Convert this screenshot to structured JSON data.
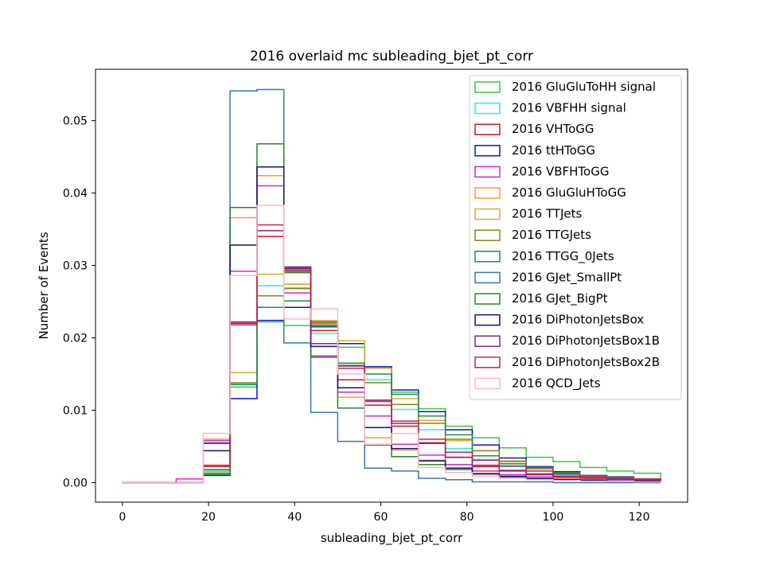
{
  "chart_data": {
    "type": "step-histogram",
    "title": "2016 overlaid mc subleading_bjet_pt_corr",
    "xlabel": "subleading_bjet_pt_corr",
    "ylabel": "Number of Events",
    "xlim": [
      -6.25,
      131.25
    ],
    "ylim": [
      -0.0027,
      0.0571
    ],
    "xticks": [
      0,
      20,
      40,
      60,
      80,
      100,
      120
    ],
    "xtick_labels": [
      "0",
      "20",
      "40",
      "60",
      "80",
      "100",
      "120"
    ],
    "yticks": [
      0.0,
      0.01,
      0.02,
      0.03,
      0.04,
      0.05
    ],
    "ytick_labels": [
      "0.00",
      "0.01",
      "0.02",
      "0.03",
      "0.04",
      "0.05"
    ],
    "grid": false,
    "legend_position": "top-right",
    "bin_edges": [
      0,
      6.25,
      12.5,
      18.75,
      25,
      31.25,
      37.5,
      43.75,
      50,
      56.25,
      62.5,
      68.75,
      75,
      81.25,
      87.5,
      93.75,
      100,
      106.25,
      112.5,
      118.75,
      125
    ],
    "series": [
      {
        "name": "2016 GluGluToHH signal",
        "color": "#33cc33",
        "values": [
          0,
          0,
          0,
          0.0012,
          0.0132,
          0.0222,
          0.0217,
          0.022,
          0.0187,
          0.016,
          0.0125,
          0.0102,
          0.0078,
          0.0062,
          0.0048,
          0.0035,
          0.0029,
          0.0021,
          0.0016,
          0.0013
        ]
      },
      {
        "name": "2016 VBFHH signal",
        "color": "#22eeee",
        "values": [
          0,
          0,
          0,
          0.0017,
          0.0135,
          0.0272,
          0.0269,
          0.0206,
          0.0165,
          0.0142,
          0.0101,
          0.0073,
          0.0047,
          0.0032,
          0.0022,
          0.0016,
          0.0011,
          0.0008,
          0.0006,
          0.0005
        ]
      },
      {
        "name": "2016 VHToGG",
        "color": "#dd1111",
        "values": [
          0,
          0,
          0,
          0.0024,
          0.022,
          0.034,
          0.0292,
          0.021,
          0.0142,
          0.0107,
          0.0078,
          0.0055,
          0.0035,
          0.0022,
          0.0016,
          0.0011,
          0.0008,
          0.0006,
          0.0004,
          0.0003
        ]
      },
      {
        "name": "2016 ttHToGG",
        "color": "#1111dd",
        "values": [
          0,
          0,
          0,
          0.001,
          0.0116,
          0.0224,
          0.0242,
          0.0216,
          0.0192,
          0.016,
          0.0128,
          0.0098,
          0.0073,
          0.0052,
          0.0034,
          0.0022,
          0.0015,
          0.001,
          0.0008,
          0.0005
        ]
      },
      {
        "name": "2016 VBFHToGG",
        "color": "#dd22dd",
        "values": [
          0,
          0,
          0.0005,
          0.0058,
          0.0292,
          0.041,
          0.0262,
          0.0175,
          0.0125,
          0.0092,
          0.0053,
          0.0038,
          0.0025,
          0.0016,
          0.0011,
          0.0008,
          0.0006,
          0.0004,
          0.0003,
          0.0002
        ]
      },
      {
        "name": "2016 GluGluHToGG",
        "color": "#ff9922",
        "values": [
          0,
          0,
          0,
          0.006,
          0.0366,
          0.0424,
          0.0274,
          0.0192,
          0.0118,
          0.0062,
          0.0045,
          0.0031,
          0.002,
          0.0013,
          0.0009,
          0.0006,
          0.0005,
          0.0003,
          0.0002,
          0.0002
        ]
      },
      {
        "name": "2016 TTJets",
        "color": "#ddaa33",
        "values": [
          0,
          0,
          0,
          0.0015,
          0.0152,
          0.0288,
          0.0274,
          0.0224,
          0.0196,
          0.0158,
          0.0116,
          0.0086,
          0.0058,
          0.0044,
          0.003,
          0.002,
          0.0014,
          0.001,
          0.0007,
          0.0005
        ]
      },
      {
        "name": "2016 TTGJets",
        "color": "#888811",
        "values": [
          0,
          0,
          0,
          0.0013,
          0.0138,
          0.0258,
          0.0268,
          0.0218,
          0.0162,
          0.0138,
          0.0108,
          0.0082,
          0.006,
          0.0044,
          0.0029,
          0.0019,
          0.0013,
          0.0009,
          0.0007,
          0.0005
        ]
      },
      {
        "name": "2016 TTGG_0Jets",
        "color": "#228855",
        "values": [
          0,
          0,
          0,
          0.0011,
          0.0136,
          0.0242,
          0.0251,
          0.0215,
          0.0165,
          0.015,
          0.0122,
          0.0092,
          0.0066,
          0.0037,
          0.0026,
          0.0021,
          0.0014,
          0.001,
          0.0008,
          0.0005
        ]
      },
      {
        "name": "2016 GJet_SmallPt",
        "color": "#3377bb",
        "values": [
          0,
          0,
          0,
          0.0055,
          0.0541,
          0.0543,
          0.0193,
          0.0097,
          0.0057,
          0.002,
          0.0016,
          0.0006,
          0.0004,
          0.0001,
          0.0001,
          0.0001,
          0,
          0,
          0,
          0
        ]
      },
      {
        "name": "2016 GJet_BigPt",
        "color": "#228822",
        "values": [
          0,
          0,
          0,
          0.0018,
          0.038,
          0.0468,
          0.029,
          0.0173,
          0.0103,
          0.0052,
          0.0036,
          0.0025,
          0.0018,
          0.0012,
          0.0009,
          0.0006,
          0.0004,
          0.0003,
          0.0002,
          0.0001
        ]
      },
      {
        "name": "2016 DiPhotonJetsBox",
        "color": "#111177",
        "values": [
          0,
          0,
          0,
          0.0044,
          0.0328,
          0.0436,
          0.0296,
          0.0188,
          0.0131,
          0.0076,
          0.0047,
          0.003,
          0.002,
          0.0012,
          0.0008,
          0.0005,
          0.0004,
          0.0003,
          0.0002,
          0.0002
        ]
      },
      {
        "name": "2016 DiPhotonJetsBox1B",
        "color": "#882288",
        "values": [
          0,
          0,
          0,
          0.0054,
          0.0222,
          0.0348,
          0.0298,
          0.0192,
          0.0161,
          0.0114,
          0.0082,
          0.0054,
          0.0035,
          0.0024,
          0.0017,
          0.0012,
          0.0009,
          0.0007,
          0.0005,
          0.0004
        ]
      },
      {
        "name": "2016 DiPhotonJetsBox2B",
        "color": "#cc2244",
        "values": [
          0,
          0,
          0,
          0.0022,
          0.0218,
          0.0356,
          0.0294,
          0.0222,
          0.0158,
          0.0112,
          0.0085,
          0.006,
          0.0042,
          0.0031,
          0.0023,
          0.0016,
          0.0012,
          0.0009,
          0.0007,
          0.0005
        ]
      },
      {
        "name": "2016 QCD_Jets",
        "color": "#ffb6c1",
        "values": [
          0,
          0,
          0,
          0.0068,
          0.0286,
          0.0383,
          0.0226,
          0.024,
          0.015,
          0.0053,
          0.0068,
          0.0021,
          0.0014,
          0.0009,
          0.0006,
          0.0004,
          0.0003,
          0.0002,
          0.0002,
          0.0001
        ]
      }
    ]
  }
}
